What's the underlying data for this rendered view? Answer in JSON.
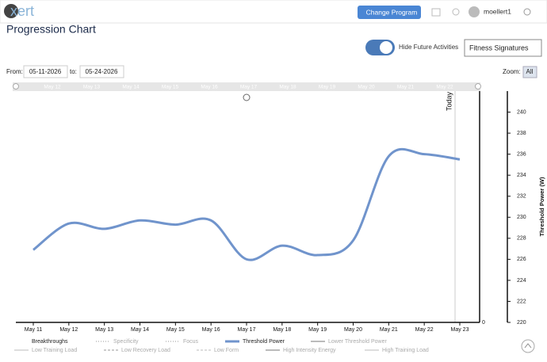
{
  "header": {
    "logo": "xert",
    "button": "Change Program",
    "user": "moellert1"
  },
  "page_title": "Progression Chart",
  "controls": {
    "toggle_label": "Hide Future Activities",
    "dropdown": "Fitness Signatures",
    "from_label": "From:",
    "from_value": "05-11-2026",
    "to_label": "to:",
    "to_value": "05-24-2026",
    "zoom_label": "Zoom:",
    "zoom_button": "All"
  },
  "navigator_labels": [
    "May 12",
    "May 13",
    "May 14",
    "May 15",
    "May 16",
    "May 17",
    "May 18",
    "May 19",
    "May 20",
    "May 21",
    "May 22"
  ],
  "chart_data": {
    "type": "line",
    "today_label": "Today",
    "categories": [
      "May 11",
      "May 12",
      "May 13",
      "May 14",
      "May 15",
      "May 16",
      "May 17",
      "May 18",
      "May 19",
      "May 20",
      "May 21",
      "May 22",
      "May 23"
    ],
    "series": [
      {
        "name": "Threshold Power",
        "color": "#7094cc",
        "values": [
          226.9,
          229.4,
          228.9,
          229.7,
          229.3,
          229.7,
          226.0,
          227.3,
          226.4,
          227.8,
          235.8,
          236.0,
          235.5
        ]
      }
    ],
    "ylabel": "Threshold Power (W)",
    "ylim": [
      220,
      242
    ],
    "yticks": [
      220,
      222,
      224,
      226,
      228,
      230,
      232,
      234,
      236,
      238,
      240
    ],
    "y2ticks": [
      0
    ],
    "legend": [
      {
        "name": "Breakthroughs",
        "color": "#333333",
        "style": "none"
      },
      {
        "name": "Specificity",
        "color": "#cccccc",
        "style": "dotted"
      },
      {
        "name": "Focus",
        "color": "#cccccc",
        "style": "dotted"
      },
      {
        "name": "Threshold Power",
        "color": "#7094cc",
        "style": "solid"
      },
      {
        "name": "Lower Threshold Power",
        "color": "#bbbbbb",
        "style": "solid"
      },
      {
        "name": "Low Training Load",
        "color": "#dddddd",
        "style": "solid"
      },
      {
        "name": "Low Recovery Load",
        "color": "#cccccc",
        "style": "dashed"
      },
      {
        "name": "Low Form",
        "color": "#dddddd",
        "style": "dashed"
      },
      {
        "name": "High Intensity Energy",
        "color": "#bbbbbb",
        "style": "solid"
      },
      {
        "name": "High Training Load",
        "color": "#dddddd",
        "style": "solid"
      }
    ]
  }
}
